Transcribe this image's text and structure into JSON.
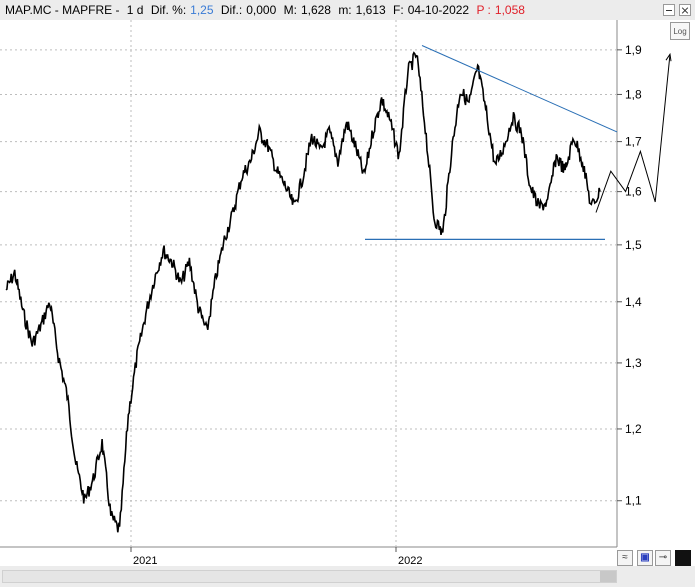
{
  "header": {
    "symbol": "MAP.MC - MAPFRE -",
    "interval": "1 d",
    "dif_pct_label": "Dif. %:",
    "dif_pct_value": "1,25",
    "dif_label": "Dif.:",
    "dif_value": "0,000",
    "m_label": "M:",
    "m_value": "1,628",
    "m2_label": "m:",
    "m2_value": "1,613",
    "f_label": "F:",
    "f_value": "04-10-2022",
    "p_label": "P :",
    "p_value": "1,058"
  },
  "controls": {
    "log_label": "Log"
  },
  "colors": {
    "trendline": "#2a6fb5",
    "price": "#000000",
    "grid": "#bdbdbd"
  },
  "chart_data": {
    "type": "line",
    "scale": "log",
    "x_tick_labels": [
      "2021",
      "2022"
    ],
    "y_tick_labels": [
      "1,9",
      "1,8",
      "1,7",
      "1,6",
      "1,5",
      "1,4",
      "1,3",
      "1,2",
      "1,1"
    ],
    "y_ticks": [
      1.9,
      1.8,
      1.7,
      1.6,
      1.5,
      1.4,
      1.3,
      1.2,
      1.1
    ],
    "ylim": [
      1.04,
      1.97
    ],
    "grid": true,
    "price_series_approx": [
      1.42,
      1.45,
      1.38,
      1.33,
      1.36,
      1.4,
      1.31,
      1.25,
      1.15,
      1.1,
      1.13,
      1.18,
      1.08,
      1.06,
      1.22,
      1.31,
      1.38,
      1.44,
      1.49,
      1.47,
      1.43,
      1.47,
      1.39,
      1.35,
      1.44,
      1.51,
      1.56,
      1.63,
      1.66,
      1.72,
      1.69,
      1.64,
      1.61,
      1.57,
      1.63,
      1.71,
      1.68,
      1.72,
      1.66,
      1.74,
      1.69,
      1.63,
      1.72,
      1.79,
      1.74,
      1.67,
      1.85,
      1.89,
      1.73,
      1.55,
      1.52,
      1.68,
      1.81,
      1.78,
      1.86,
      1.76,
      1.65,
      1.69,
      1.75,
      1.72,
      1.61,
      1.57,
      1.58,
      1.67,
      1.64,
      1.71,
      1.66,
      1.57,
      1.6
    ],
    "projection_approx": [
      1.56,
      1.64,
      1.6,
      1.68,
      1.58,
      1.89
    ],
    "trendline_upper": {
      "from": 1.91,
      "to": 1.72
    },
    "support_line": 1.51
  }
}
